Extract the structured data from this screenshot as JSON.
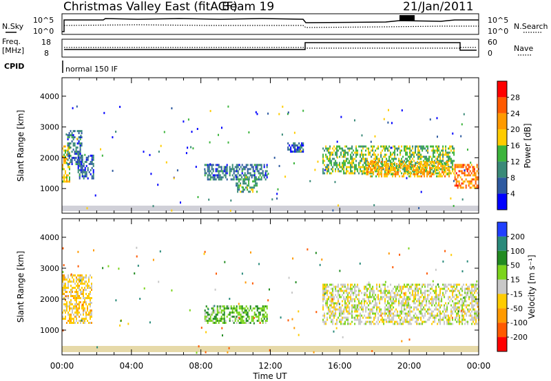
{
  "header": {
    "station": "Christmas Valley East (fitACF)",
    "beam": "Beam 19",
    "date": "21/Jan/2011"
  },
  "noise_panel": {
    "label": "N.Sky",
    "right_label": "N.Search",
    "left_ticks": [
      "10^5",
      "10^0"
    ],
    "right_ticks": [
      "10^5",
      "10^0"
    ]
  },
  "freq_panel": {
    "label_line1": "Freq.",
    "label_line2": "[MHz]",
    "right_label": "Nave",
    "left_ticks": [
      "18",
      "8"
    ],
    "right_ticks": [
      "60",
      "0"
    ]
  },
  "cpid_panel": {
    "label": "CPID",
    "mode": "normal 150 IF"
  },
  "power_panel": {
    "ylabel": "Slant Range [km]",
    "colorbar_label": "Power [dB]",
    "colorbar_ticks": [
      "28",
      "24",
      "20",
      "16",
      "12",
      "8",
      "4"
    ],
    "colorbar_colors": [
      "#ff0000",
      "#ff5a00",
      "#ff9a00",
      "#ffcc00",
      "#3cb43c",
      "#3a8a78",
      "#2e5aa0",
      "#0000ff"
    ]
  },
  "velocity_panel": {
    "ylabel": "Slant Range [km]",
    "colorbar_label": "Velocity [m s⁻¹]",
    "colorbar_ticks": [
      "200",
      "100",
      "50",
      "15",
      "-15",
      "-50",
      "-100",
      "-200"
    ],
    "colorbar_colors": [
      "#2040ff",
      "#2a8a7a",
      "#228b22",
      "#7cd41c",
      "#c8c8c8",
      "#ffcc00",
      "#ff9a00",
      "#ff5a00",
      "#ff0000"
    ]
  },
  "x_axis": {
    "title": "Time UT",
    "ticks": [
      "00:00",
      "04:00",
      "08:00",
      "12:00",
      "16:00",
      "20:00",
      "00:00"
    ]
  },
  "chart_data": [
    {
      "type": "heatmap",
      "title": "",
      "quantity": "Power",
      "unit": "dB",
      "xlabel": "Time UT",
      "ylabel": "Slant Range [km]",
      "xlim_hours": [
        0,
        24
      ],
      "ylim": [
        200,
        4600
      ],
      "yticks": [
        1000,
        2000,
        3000,
        4000
      ],
      "clim": [
        0,
        32
      ],
      "echo_regions": [
        {
          "t0": 0.0,
          "t1": 0.4,
          "r0": 1200,
          "r1": 2400,
          "value": 18
        },
        {
          "t0": 0.3,
          "t1": 1.1,
          "r0": 1800,
          "r1": 2900,
          "value": 8
        },
        {
          "t0": 0.9,
          "t1": 1.8,
          "r0": 1300,
          "r1": 2100,
          "value": 6
        },
        {
          "t0": 8.2,
          "t1": 11.8,
          "r0": 1300,
          "r1": 1800,
          "value": 8
        },
        {
          "t0": 10.0,
          "t1": 11.2,
          "r0": 900,
          "r1": 1400,
          "value": 12
        },
        {
          "t0": 12.9,
          "t1": 13.9,
          "r0": 2200,
          "r1": 2500,
          "value": 6
        },
        {
          "t0": 15.0,
          "t1": 22.6,
          "r0": 1500,
          "r1": 2400,
          "value": 14
        },
        {
          "t0": 17.5,
          "t1": 22.3,
          "r0": 1400,
          "r1": 1900,
          "value": 20
        },
        {
          "t0": 22.6,
          "t1": 24.0,
          "r0": 1000,
          "r1": 1800,
          "value": 24
        }
      ]
    },
    {
      "type": "heatmap",
      "title": "",
      "quantity": "Velocity",
      "unit": "m s⁻¹",
      "xlabel": "Time UT",
      "ylabel": "Slant Range [km]",
      "xlim_hours": [
        0,
        24
      ],
      "ylim": [
        200,
        4600
      ],
      "yticks": [
        1000,
        2000,
        3000,
        4000
      ],
      "clim": [
        -250,
        250
      ],
      "echo_regions": [
        {
          "t0": 0.0,
          "t1": 1.7,
          "r0": 1200,
          "r1": 2800,
          "value": -30
        },
        {
          "t0": 8.2,
          "t1": 11.8,
          "r0": 1200,
          "r1": 1800,
          "value": 40
        },
        {
          "t0": 15.0,
          "t1": 24.0,
          "r0": 1200,
          "r1": 2500,
          "value": 0
        }
      ]
    }
  ]
}
